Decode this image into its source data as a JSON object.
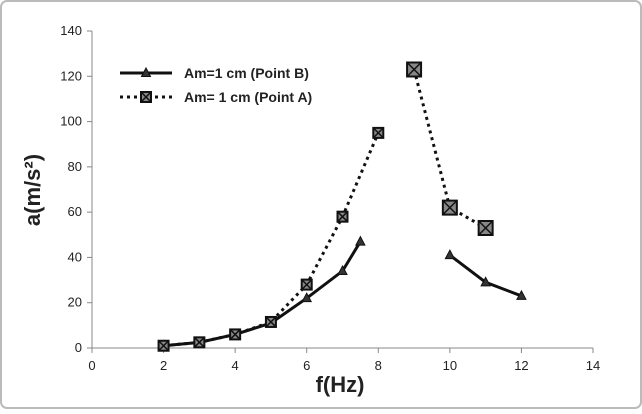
{
  "chart_data": {
    "type": "line",
    "x_label": "f(Hz)",
    "y_label": "a(m/s²)",
    "xlim": [
      0,
      14
    ],
    "xticks": [
      0,
      2,
      4,
      6,
      8,
      10,
      12,
      14
    ],
    "ylim": [
      0,
      140
    ],
    "yticks": [
      0,
      20,
      40,
      60,
      80,
      100,
      120,
      140
    ],
    "grid": false,
    "legend": "upper left",
    "series": [
      {
        "name": "Am=1 cm (Point B)",
        "color": "#111111",
        "style": "solid",
        "marker": "triangle",
        "x": [
          2,
          3,
          4,
          5,
          6,
          7,
          7.5,
          null,
          10,
          11,
          12
        ],
        "values": [
          1,
          2.5,
          6,
          11,
          22,
          34,
          47,
          null,
          41,
          29,
          23
        ]
      },
      {
        "name": "Am= 1 cm (Point A)",
        "color": "#111111",
        "style": "dotted",
        "marker": "square-x",
        "x": [
          2,
          3,
          4,
          5,
          6,
          7,
          8,
          null,
          9,
          10,
          11
        ],
        "values": [
          1,
          2.5,
          6,
          11.5,
          28,
          58,
          95,
          null,
          123,
          62,
          53
        ]
      }
    ]
  }
}
